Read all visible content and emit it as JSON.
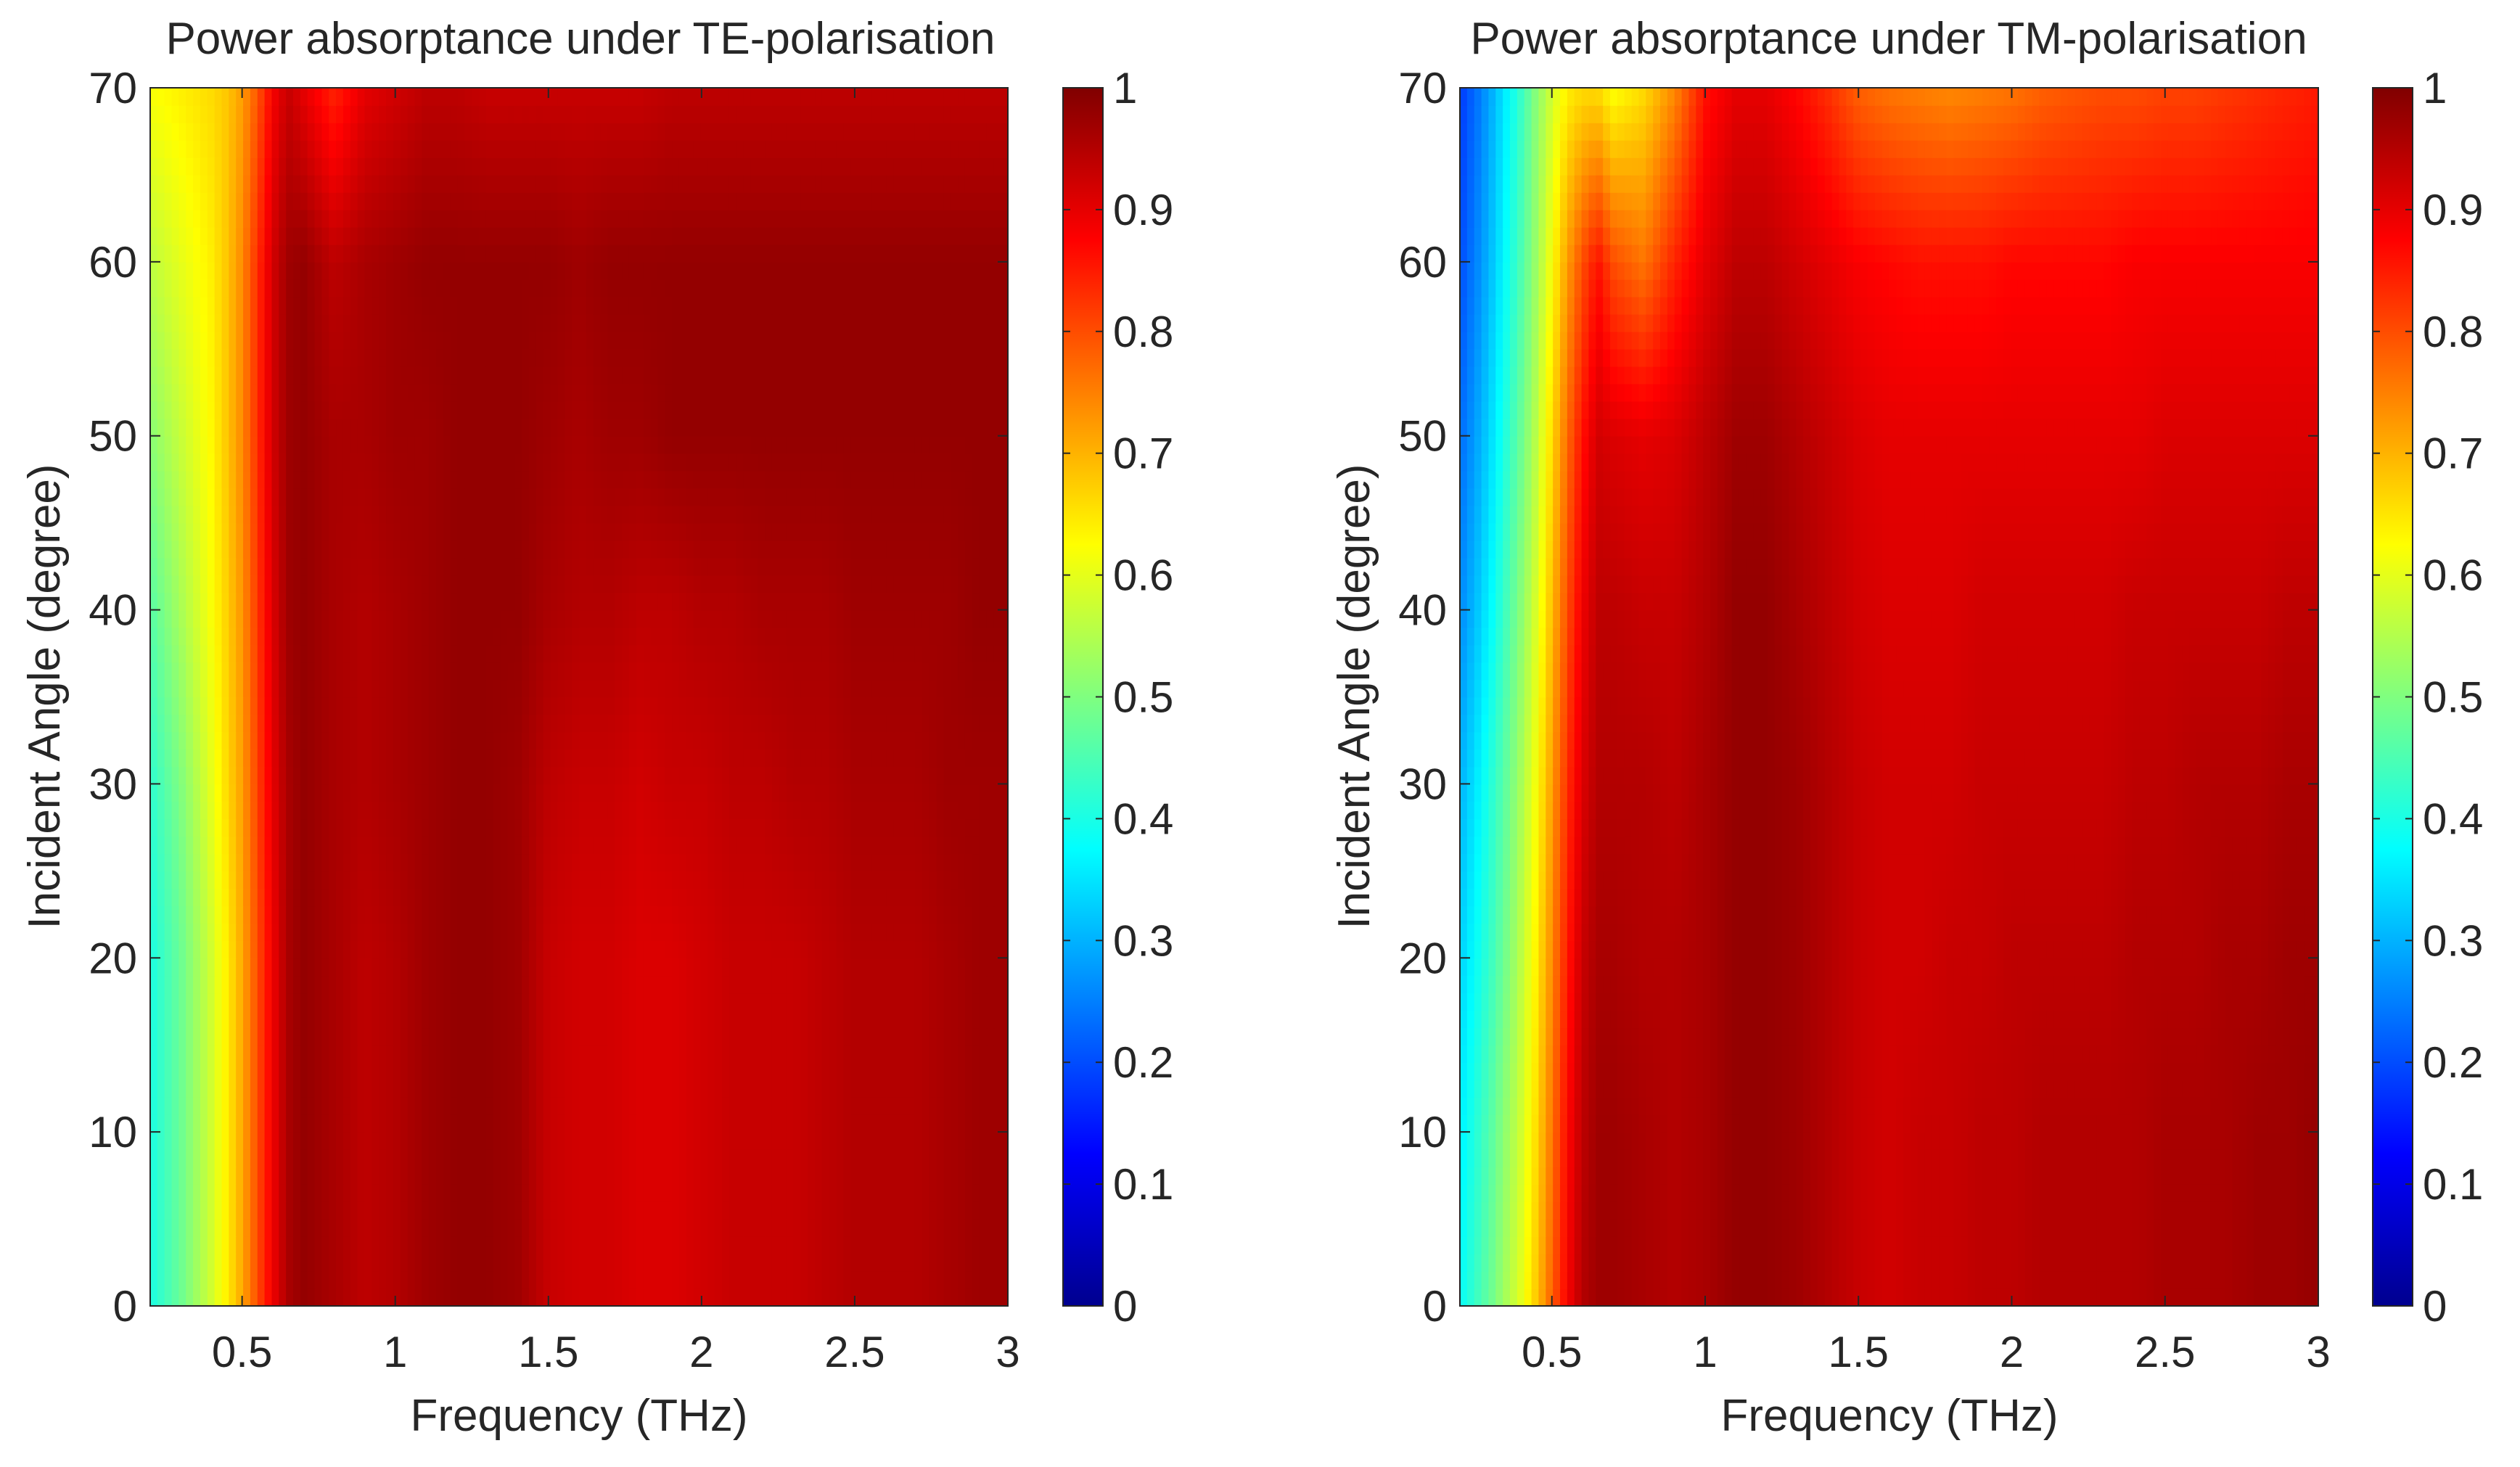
{
  "chart_data": [
    {
      "type": "heatmap",
      "title": "Power absorptance under TE-polarisation",
      "xlabel": "Frequency (THz)",
      "ylabel": "Incident Angle (degree)",
      "xlim": [
        0.2,
        3
      ],
      "ylim": [
        0,
        70
      ],
      "xticks": [
        0.5,
        1,
        1.5,
        2,
        2.5,
        3
      ],
      "xtick_labels": [
        "0.5",
        "1",
        "1.5",
        "2",
        "2.5",
        "3"
      ],
      "yticks": [
        0,
        10,
        20,
        30,
        40,
        50,
        60,
        70
      ],
      "ytick_labels": [
        "0",
        "10",
        "20",
        "30",
        "40",
        "50",
        "60",
        "70"
      ],
      "colorbar": {
        "colormap": "jet",
        "range": [
          0,
          1
        ],
        "ticks": [
          0,
          0.1,
          0.2,
          0.3,
          0.4,
          0.5,
          0.6,
          0.7,
          0.8,
          0.9,
          1
        ],
        "tick_labels": [
          "0",
          "0.1",
          "0.2",
          "0.3",
          "0.4",
          "0.5",
          "0.6",
          "0.7",
          "0.8",
          "0.9",
          "1"
        ]
      },
      "grid": false,
      "frequency_thz": [
        0.2,
        0.25,
        0.3,
        0.35,
        0.4,
        0.45,
        0.5,
        0.55,
        0.6,
        0.65,
        0.7,
        0.8,
        0.9,
        1.0,
        1.1,
        1.2,
        1.3,
        1.4,
        1.5,
        1.6,
        1.7,
        1.8,
        1.9,
        2.0,
        2.1,
        2.2,
        2.3,
        2.4,
        2.5,
        2.6,
        2.7,
        2.8,
        2.9,
        3.0
      ],
      "angle_deg": [
        0,
        10,
        20,
        30,
        40,
        50,
        60,
        70
      ],
      "absorptance": [
        [
          0.4,
          0.44,
          0.48,
          0.53,
          0.58,
          0.64,
          0.71,
          0.8,
          0.89,
          0.96,
          0.98,
          0.96,
          0.94,
          0.95,
          0.97,
          0.98,
          0.98,
          0.97,
          0.93,
          0.92,
          0.92,
          0.91,
          0.91,
          0.92,
          0.93,
          0.93,
          0.93,
          0.94,
          0.95,
          0.95,
          0.95,
          0.96,
          0.97,
          0.97
        ],
        [
          0.4,
          0.44,
          0.48,
          0.53,
          0.58,
          0.64,
          0.71,
          0.8,
          0.89,
          0.96,
          0.98,
          0.96,
          0.94,
          0.95,
          0.97,
          0.98,
          0.98,
          0.97,
          0.93,
          0.92,
          0.92,
          0.91,
          0.91,
          0.92,
          0.93,
          0.93,
          0.93,
          0.94,
          0.95,
          0.95,
          0.95,
          0.96,
          0.97,
          0.97
        ],
        [
          0.4,
          0.44,
          0.48,
          0.53,
          0.58,
          0.64,
          0.71,
          0.8,
          0.89,
          0.96,
          0.98,
          0.96,
          0.94,
          0.95,
          0.97,
          0.98,
          0.98,
          0.97,
          0.93,
          0.92,
          0.92,
          0.91,
          0.91,
          0.92,
          0.93,
          0.93,
          0.93,
          0.94,
          0.95,
          0.95,
          0.95,
          0.96,
          0.97,
          0.97
        ],
        [
          0.42,
          0.46,
          0.5,
          0.55,
          0.6,
          0.66,
          0.72,
          0.81,
          0.9,
          0.96,
          0.98,
          0.96,
          0.95,
          0.96,
          0.97,
          0.98,
          0.98,
          0.97,
          0.94,
          0.93,
          0.93,
          0.92,
          0.93,
          0.93,
          0.94,
          0.94,
          0.95,
          0.95,
          0.96,
          0.96,
          0.96,
          0.97,
          0.97,
          0.97
        ],
        [
          0.46,
          0.5,
          0.54,
          0.58,
          0.62,
          0.67,
          0.73,
          0.82,
          0.91,
          0.97,
          0.98,
          0.96,
          0.95,
          0.96,
          0.97,
          0.98,
          0.98,
          0.98,
          0.96,
          0.95,
          0.95,
          0.94,
          0.94,
          0.95,
          0.95,
          0.96,
          0.96,
          0.96,
          0.97,
          0.97,
          0.97,
          0.97,
          0.98,
          0.98
        ],
        [
          0.51,
          0.54,
          0.57,
          0.6,
          0.63,
          0.68,
          0.74,
          0.83,
          0.92,
          0.97,
          0.98,
          0.96,
          0.96,
          0.97,
          0.97,
          0.98,
          0.98,
          0.98,
          0.97,
          0.96,
          0.97,
          0.97,
          0.98,
          0.98,
          0.98,
          0.98,
          0.98,
          0.98,
          0.98,
          0.98,
          0.98,
          0.98,
          0.98,
          0.98
        ],
        [
          0.56,
          0.58,
          0.6,
          0.62,
          0.64,
          0.68,
          0.74,
          0.83,
          0.92,
          0.97,
          0.98,
          0.94,
          0.96,
          0.97,
          0.98,
          0.98,
          0.98,
          0.98,
          0.98,
          0.97,
          0.98,
          0.98,
          0.98,
          0.98,
          0.98,
          0.98,
          0.98,
          0.98,
          0.98,
          0.98,
          0.98,
          0.98,
          0.98,
          0.98
        ],
        [
          0.62,
          0.63,
          0.64,
          0.65,
          0.66,
          0.68,
          0.72,
          0.79,
          0.88,
          0.93,
          0.9,
          0.84,
          0.9,
          0.92,
          0.94,
          0.94,
          0.93,
          0.93,
          0.93,
          0.93,
          0.93,
          0.93,
          0.94,
          0.94,
          0.94,
          0.94,
          0.94,
          0.94,
          0.94,
          0.94,
          0.94,
          0.94,
          0.94,
          0.94
        ]
      ]
    },
    {
      "type": "heatmap",
      "title": "Power absorptance under TM-polarisation",
      "xlabel": "Frequency (THz)",
      "ylabel": "Incident Angle (degree)",
      "xlim": [
        0.2,
        3
      ],
      "ylim": [
        0,
        70
      ],
      "xticks": [
        0.5,
        1,
        1.5,
        2,
        2.5,
        3
      ],
      "xtick_labels": [
        "0.5",
        "1",
        "1.5",
        "2",
        "2.5",
        "3"
      ],
      "yticks": [
        0,
        10,
        20,
        30,
        40,
        50,
        60,
        70
      ],
      "ytick_labels": [
        "0",
        "10",
        "20",
        "30",
        "40",
        "50",
        "60",
        "70"
      ],
      "colorbar": {
        "colormap": "jet",
        "range": [
          0,
          1
        ],
        "ticks": [
          0,
          0.1,
          0.2,
          0.3,
          0.4,
          0.5,
          0.6,
          0.7,
          0.8,
          0.9,
          1
        ],
        "tick_labels": [
          "0",
          "0.1",
          "0.2",
          "0.3",
          "0.4",
          "0.5",
          "0.6",
          "0.7",
          "0.8",
          "0.9",
          "1"
        ]
      },
      "grid": false,
      "frequency_thz": [
        0.2,
        0.25,
        0.3,
        0.35,
        0.4,
        0.45,
        0.5,
        0.55,
        0.6,
        0.65,
        0.7,
        0.8,
        0.9,
        1.0,
        1.1,
        1.2,
        1.3,
        1.4,
        1.5,
        1.6,
        1.7,
        1.8,
        1.9,
        2.0,
        2.1,
        2.2,
        2.3,
        2.4,
        2.5,
        2.6,
        2.7,
        2.8,
        2.9,
        3.0
      ],
      "angle_deg": [
        0,
        10,
        20,
        30,
        40,
        50,
        60,
        70
      ],
      "absorptance": [
        [
          0.38,
          0.43,
          0.48,
          0.54,
          0.6,
          0.68,
          0.78,
          0.88,
          0.95,
          0.97,
          0.97,
          0.96,
          0.95,
          0.96,
          0.98,
          0.98,
          0.97,
          0.95,
          0.93,
          0.92,
          0.93,
          0.93,
          0.94,
          0.94,
          0.95,
          0.95,
          0.95,
          0.95,
          0.96,
          0.96,
          0.96,
          0.97,
          0.97,
          0.98
        ],
        [
          0.36,
          0.41,
          0.46,
          0.52,
          0.58,
          0.66,
          0.76,
          0.87,
          0.94,
          0.97,
          0.97,
          0.96,
          0.95,
          0.96,
          0.98,
          0.98,
          0.97,
          0.95,
          0.93,
          0.92,
          0.93,
          0.93,
          0.94,
          0.94,
          0.95,
          0.95,
          0.95,
          0.95,
          0.96,
          0.96,
          0.96,
          0.97,
          0.97,
          0.98
        ],
        [
          0.33,
          0.38,
          0.43,
          0.49,
          0.56,
          0.64,
          0.74,
          0.85,
          0.93,
          0.96,
          0.96,
          0.95,
          0.95,
          0.96,
          0.98,
          0.98,
          0.97,
          0.95,
          0.93,
          0.92,
          0.92,
          0.93,
          0.93,
          0.94,
          0.94,
          0.94,
          0.94,
          0.95,
          0.95,
          0.95,
          0.96,
          0.96,
          0.97,
          0.97
        ],
        [
          0.3,
          0.35,
          0.41,
          0.47,
          0.54,
          0.62,
          0.72,
          0.83,
          0.91,
          0.95,
          0.95,
          0.95,
          0.94,
          0.96,
          0.98,
          0.98,
          0.97,
          0.95,
          0.93,
          0.92,
          0.92,
          0.92,
          0.93,
          0.93,
          0.93,
          0.93,
          0.93,
          0.94,
          0.94,
          0.95,
          0.95,
          0.95,
          0.96,
          0.96
        ],
        [
          0.26,
          0.31,
          0.37,
          0.44,
          0.51,
          0.59,
          0.69,
          0.8,
          0.89,
          0.94,
          0.94,
          0.93,
          0.93,
          0.95,
          0.98,
          0.98,
          0.96,
          0.94,
          0.92,
          0.91,
          0.91,
          0.91,
          0.92,
          0.92,
          0.92,
          0.92,
          0.92,
          0.93,
          0.93,
          0.93,
          0.93,
          0.93,
          0.94,
          0.94
        ],
        [
          0.23,
          0.28,
          0.34,
          0.41,
          0.48,
          0.56,
          0.66,
          0.77,
          0.86,
          0.92,
          0.91,
          0.9,
          0.91,
          0.94,
          0.97,
          0.97,
          0.95,
          0.93,
          0.91,
          0.9,
          0.9,
          0.9,
          0.9,
          0.9,
          0.9,
          0.9,
          0.9,
          0.9,
          0.91,
          0.91,
          0.91,
          0.91,
          0.91,
          0.91
        ],
        [
          0.2,
          0.25,
          0.31,
          0.38,
          0.45,
          0.53,
          0.62,
          0.72,
          0.8,
          0.86,
          0.8,
          0.76,
          0.84,
          0.9,
          0.94,
          0.94,
          0.92,
          0.9,
          0.88,
          0.87,
          0.86,
          0.86,
          0.86,
          0.87,
          0.87,
          0.87,
          0.87,
          0.88,
          0.88,
          0.88,
          0.88,
          0.88,
          0.88,
          0.88
        ],
        [
          0.18,
          0.23,
          0.29,
          0.36,
          0.43,
          0.51,
          0.58,
          0.64,
          0.66,
          0.66,
          0.62,
          0.66,
          0.74,
          0.86,
          0.9,
          0.9,
          0.87,
          0.83,
          0.78,
          0.76,
          0.75,
          0.74,
          0.75,
          0.76,
          0.78,
          0.79,
          0.8,
          0.8,
          0.81,
          0.81,
          0.82,
          0.83,
          0.84,
          0.85
        ]
      ]
    }
  ]
}
